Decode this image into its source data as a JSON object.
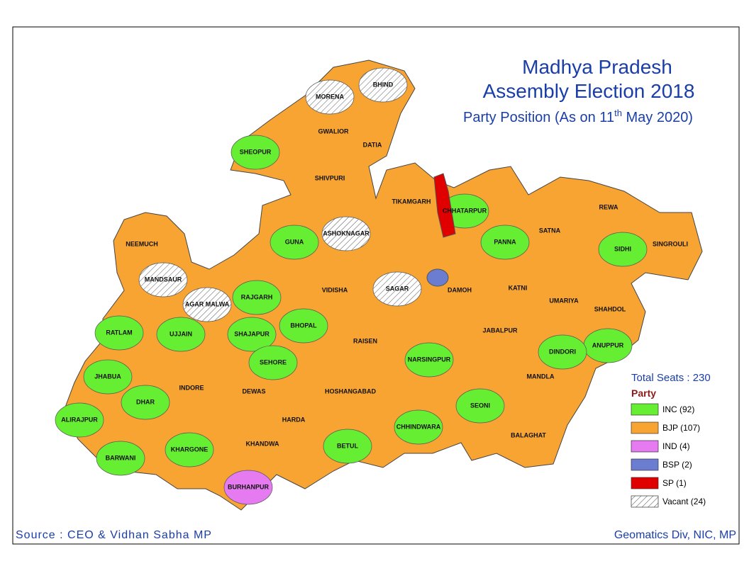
{
  "title_line1": "Madhya Pradesh",
  "title_line2": "Assembly Election 2018",
  "subtitle": {
    "before": "Party Position (As on 11",
    "sup": "th",
    "after": " May 2020)"
  },
  "total_seats": "Total Seats : 230",
  "legend_title": "Party",
  "legend": [
    {
      "label": "INC (92)",
      "color": "#66ee33"
    },
    {
      "label": "BJP (107)",
      "color": "#f7a433"
    },
    {
      "label": "IND (4)",
      "color": "#e67af0"
    },
    {
      "label": "BSP (2)",
      "color": "#6b7dd1"
    },
    {
      "label": "SP  (1)",
      "color": "#e00000"
    },
    {
      "label": "Vacant (24)",
      "color": "hatch"
    }
  ],
  "source": "Source : CEO & Vidhan Sabha MP",
  "credit": "Geomatics Div, NIC, MP",
  "districts": [
    "SHEOPUR",
    "MORENA",
    "BHIND",
    "GWALIOR",
    "DATIA",
    "SHIVPURI",
    "GUNA",
    "ASHOKNAGAR",
    "TIKAMGARH",
    "CHHATARPUR",
    "PANNA",
    "SATNA",
    "REWA",
    "SIDHI",
    "SINGROULI",
    "NEEMUCH",
    "MANDSAUR",
    "RATLAM",
    "UJJAIN",
    "AGAR MALWA",
    "RAJGARH",
    "SHAJAPUR",
    "VIDISHA",
    "SAGAR",
    "DAMOH",
    "KATNI",
    "UMARIYA",
    "SHAHDOL",
    "ANUPPUR",
    "DINDORI",
    "JABALPUR",
    "MANDLA",
    "BHOPAL",
    "RAISEN",
    "SEHORE",
    "NARSINGPUR",
    "SEONI",
    "BALAGHAT",
    "CHHINDWARA",
    "BETUL",
    "HOSHANGABAD",
    "HARDA",
    "DEWAS",
    "INDORE",
    "DHAR",
    "JHABUA",
    "ALIRAJPUR",
    "BARWANI",
    "KHARGONE",
    "KHANDWA",
    "BURHANPUR"
  ]
}
